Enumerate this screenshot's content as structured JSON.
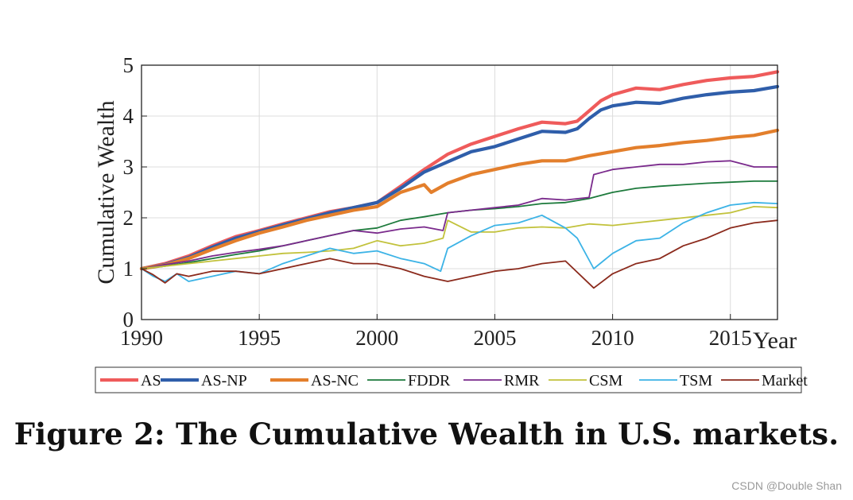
{
  "chart_data": {
    "type": "line",
    "xlabel": "Year",
    "ylabel": "Cumulative Wealth",
    "xlim": [
      1990,
      2017
    ],
    "ylim": [
      0,
      5
    ],
    "xticks": [
      1990,
      1995,
      2000,
      2005,
      2010,
      2015
    ],
    "yticks": [
      0,
      1,
      2,
      3,
      4,
      5
    ],
    "grid": true,
    "legend_position": "bottom",
    "series": [
      {
        "name": "AS",
        "color": "#ef5b5b",
        "width": "thick",
        "x": [
          1990,
          1991,
          1992,
          1993,
          1994,
          1995,
          1996,
          1997,
          1998,
          1999,
          2000,
          2001,
          2002,
          2003,
          2004,
          2005,
          2006,
          2007,
          2008,
          2008.5,
          2009,
          2009.5,
          2010,
          2011,
          2012,
          2013,
          2014,
          2015,
          2016,
          2017
        ],
        "y": [
          1.0,
          1.1,
          1.25,
          1.45,
          1.63,
          1.75,
          1.88,
          2.0,
          2.12,
          2.2,
          2.3,
          2.62,
          2.95,
          3.25,
          3.45,
          3.6,
          3.75,
          3.88,
          3.85,
          3.9,
          4.1,
          4.3,
          4.42,
          4.55,
          4.52,
          4.62,
          4.7,
          4.75,
          4.78,
          4.87
        ]
      },
      {
        "name": "AS-NP",
        "color": "#2f5eaa",
        "width": "thick",
        "x": [
          1990,
          1991,
          1992,
          1993,
          1994,
          1995,
          1996,
          1997,
          1998,
          1999,
          2000,
          2001,
          2002,
          2003,
          2004,
          2005,
          2006,
          2007,
          2008,
          2008.5,
          2009,
          2009.5,
          2010,
          2011,
          2012,
          2013,
          2014,
          2015,
          2016,
          2017
        ],
        "y": [
          1.0,
          1.08,
          1.22,
          1.42,
          1.6,
          1.73,
          1.86,
          1.98,
          2.1,
          2.2,
          2.3,
          2.58,
          2.9,
          3.1,
          3.3,
          3.4,
          3.55,
          3.7,
          3.68,
          3.75,
          3.95,
          4.12,
          4.2,
          4.27,
          4.25,
          4.35,
          4.42,
          4.47,
          4.5,
          4.58
        ]
      },
      {
        "name": "AS-NC",
        "color": "#e37f2c",
        "width": "thick",
        "x": [
          1990,
          1991,
          1992,
          1993,
          1994,
          1995,
          1996,
          1997,
          1998,
          1999,
          2000,
          2001,
          2002,
          2002.3,
          2003,
          2004,
          2005,
          2006,
          2007,
          2008,
          2009,
          2010,
          2011,
          2012,
          2013,
          2014,
          2015,
          2016,
          2017
        ],
        "y": [
          1.0,
          1.07,
          1.2,
          1.38,
          1.55,
          1.7,
          1.82,
          1.95,
          2.05,
          2.15,
          2.22,
          2.5,
          2.65,
          2.5,
          2.68,
          2.85,
          2.95,
          3.05,
          3.12,
          3.12,
          3.22,
          3.3,
          3.38,
          3.42,
          3.48,
          3.52,
          3.58,
          3.62,
          3.72
        ]
      },
      {
        "name": "FDDR",
        "color": "#1d7a3c",
        "width": "thin",
        "x": [
          1990,
          1991,
          1992,
          1993,
          1994,
          1995,
          1996,
          1997,
          1998,
          1999,
          2000,
          2001,
          2002,
          2003,
          2004,
          2005,
          2006,
          2007,
          2008,
          2009,
          2010,
          2011,
          2012,
          2013,
          2014,
          2015,
          2016,
          2017
        ],
        "y": [
          1.0,
          1.05,
          1.12,
          1.2,
          1.28,
          1.35,
          1.45,
          1.55,
          1.65,
          1.75,
          1.8,
          1.95,
          2.02,
          2.1,
          2.15,
          2.18,
          2.22,
          2.28,
          2.3,
          2.38,
          2.5,
          2.58,
          2.62,
          2.65,
          2.68,
          2.7,
          2.72,
          2.72
        ]
      },
      {
        "name": "RMR",
        "color": "#7a2a8c",
        "width": "thin",
        "x": [
          1990,
          1991,
          1992,
          1993,
          1994,
          1995,
          1996,
          1997,
          1998,
          1999,
          2000,
          2001,
          2002,
          2002.8,
          2003,
          2004,
          2005,
          2006,
          2007,
          2008,
          2009,
          2009.2,
          2010,
          2011,
          2012,
          2013,
          2014,
          2015,
          2016,
          2017
        ],
        "y": [
          1.0,
          1.08,
          1.15,
          1.25,
          1.32,
          1.38,
          1.45,
          1.55,
          1.65,
          1.75,
          1.7,
          1.78,
          1.82,
          1.75,
          2.1,
          2.15,
          2.2,
          2.25,
          2.38,
          2.35,
          2.4,
          2.85,
          2.95,
          3.0,
          3.05,
          3.05,
          3.1,
          3.12,
          3.0,
          3.0
        ]
      },
      {
        "name": "CSM",
        "color": "#c2c23c",
        "width": "thin",
        "x": [
          1990,
          1991,
          1992,
          1993,
          1994,
          1995,
          1996,
          1997,
          1998,
          1999,
          2000,
          2001,
          2002,
          2002.8,
          2003,
          2004,
          2005,
          2006,
          2007,
          2008,
          2009,
          2010,
          2011,
          2012,
          2013,
          2014,
          2015,
          2016,
          2017
        ],
        "y": [
          1.0,
          1.05,
          1.1,
          1.15,
          1.2,
          1.25,
          1.3,
          1.32,
          1.35,
          1.4,
          1.55,
          1.45,
          1.5,
          1.6,
          1.95,
          1.72,
          1.72,
          1.8,
          1.82,
          1.8,
          1.88,
          1.85,
          1.9,
          1.95,
          2.0,
          2.05,
          2.1,
          2.22,
          2.2
        ]
      },
      {
        "name": "TSM",
        "color": "#3cb3e6",
        "width": "thin",
        "x": [
          1990,
          1990.5,
          1991,
          1991.5,
          1992,
          1993,
          1994,
          1995,
          1996,
          1997,
          1998,
          1999,
          2000,
          2001,
          2002,
          2002.7,
          2003,
          2004,
          2005,
          2006,
          2007,
          2008,
          2008.5,
          2009.2,
          2010,
          2011,
          2012,
          2013,
          2014,
          2015,
          2016,
          2017
        ],
        "y": [
          1.0,
          0.85,
          0.75,
          0.9,
          0.75,
          0.85,
          0.95,
          0.9,
          1.1,
          1.25,
          1.4,
          1.3,
          1.35,
          1.2,
          1.1,
          0.95,
          1.4,
          1.65,
          1.85,
          1.9,
          2.05,
          1.8,
          1.6,
          1.0,
          1.3,
          1.55,
          1.6,
          1.9,
          2.1,
          2.25,
          2.3,
          2.28
        ]
      },
      {
        "name": "Market",
        "color": "#8b2a1c",
        "width": "thin",
        "x": [
          1990,
          1990.5,
          1991,
          1991.5,
          1992,
          1993,
          1994,
          1995,
          1996,
          1997,
          1998,
          1999,
          2000,
          2001,
          2002,
          2003,
          2004,
          2005,
          2006,
          2007,
          2008,
          2009.2,
          2010,
          2011,
          2012,
          2013,
          2014,
          2015,
          2016,
          2017
        ],
        "y": [
          1.0,
          0.88,
          0.72,
          0.9,
          0.85,
          0.95,
          0.95,
          0.9,
          1.0,
          1.1,
          1.2,
          1.1,
          1.1,
          1.0,
          0.85,
          0.75,
          0.85,
          0.95,
          1.0,
          1.1,
          1.15,
          0.62,
          0.9,
          1.1,
          1.2,
          1.45,
          1.6,
          1.8,
          1.9,
          1.95
        ]
      }
    ]
  },
  "caption": "Figure 2: The Cumulative Wealth in U.S. markets.",
  "watermark": "CSDN @Double Shan"
}
